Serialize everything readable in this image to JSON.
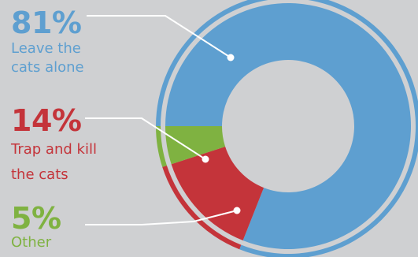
{
  "chart_data": {
    "type": "donut",
    "title": "",
    "slices": [
      {
        "value": 81,
        "percent_label": "81%",
        "label_line1": "Leave the",
        "label_line2": "cats alone",
        "color": "#5e9fd0"
      },
      {
        "value": 14,
        "percent_label": "14%",
        "label_line1": "Trap and kill",
        "label_line2": "the cats",
        "color": "#c4343a"
      },
      {
        "value": 5,
        "percent_label": "5%",
        "label_line1": "Other",
        "label_line2": "",
        "color": "#7fb241"
      }
    ],
    "colors": {
      "background": "#cfd0d2",
      "leader_line": "#ffffff",
      "ring_gap": "#cfd0d2"
    }
  }
}
